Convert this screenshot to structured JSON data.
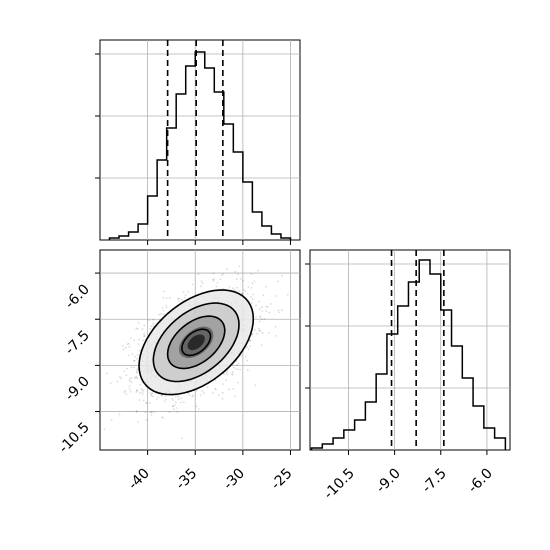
{
  "chart_data": [
    {
      "type": "histogram",
      "variable": "param_1",
      "xlim": [
        -45,
        -24
      ],
      "ylim": [
        0,
        1
      ],
      "bins": [
        {
          "x0": -44,
          "x1": -43,
          "v": 0.01
        },
        {
          "x0": -43,
          "x1": -42,
          "v": 0.02
        },
        {
          "x0": -42,
          "x1": -41,
          "v": 0.04
        },
        {
          "x0": -41,
          "x1": -40,
          "v": 0.08
        },
        {
          "x0": -40,
          "x1": -39,
          "v": 0.22
        },
        {
          "x0": -39,
          "x1": -38,
          "v": 0.4
        },
        {
          "x0": -38,
          "x1": -37,
          "v": 0.56
        },
        {
          "x0": -37,
          "x1": -36,
          "v": 0.73
        },
        {
          "x0": -36,
          "x1": -35,
          "v": 0.87
        },
        {
          "x0": -35,
          "x1": -34,
          "v": 0.94
        },
        {
          "x0": -34,
          "x1": -33,
          "v": 0.86
        },
        {
          "x0": -33,
          "x1": -32,
          "v": 0.74
        },
        {
          "x0": -32,
          "x1": -31,
          "v": 0.58
        },
        {
          "x0": -31,
          "x1": -30,
          "v": 0.44
        },
        {
          "x0": -30,
          "x1": -29,
          "v": 0.29
        },
        {
          "x0": -29,
          "x1": -28,
          "v": 0.14
        },
        {
          "x0": -28,
          "x1": -27,
          "v": 0.07
        },
        {
          "x0": -27,
          "x1": -26,
          "v": 0.03
        },
        {
          "x0": -26,
          "x1": -25,
          "v": 0.01
        }
      ],
      "quantiles": [
        -37.9,
        -34.9,
        -32.1
      ],
      "grid": true
    },
    {
      "type": "scatter-contour",
      "xlim": [
        -45,
        -24
      ],
      "ylim": [
        -11.75,
        -5.25
      ],
      "x_ticks": [
        "-40",
        "-35",
        "-30",
        "-25"
      ],
      "y_ticks": [
        "-6.0",
        "-7.5",
        "-9.0",
        "-10.5"
      ],
      "x_tick_values": [
        -40,
        -35,
        -30,
        -25
      ],
      "y_tick_values": [
        -6.0,
        -7.5,
        -9.0,
        -10.5
      ],
      "mean": [
        -34.9,
        -8.25
      ],
      "std": [
        3.0,
        0.85
      ],
      "correlation": 0.45,
      "contour_levels_sigma": [
        0.5,
        1.0,
        1.5,
        2.0
      ],
      "grid": true
    },
    {
      "type": "histogram",
      "variable": "param_2",
      "xlim": [
        -11.75,
        -5.25
      ],
      "ylim": [
        0,
        1
      ],
      "x_ticks": [
        "-10.5",
        "-9.0",
        "-7.5",
        "-6.0"
      ],
      "x_tick_values": [
        -10.5,
        -9.0,
        -7.5,
        -6.0
      ],
      "bins": [
        {
          "x0": -11.7,
          "x1": -11.35,
          "v": 0.01
        },
        {
          "x0": -11.35,
          "x1": -11.0,
          "v": 0.03
        },
        {
          "x0": -11.0,
          "x1": -10.65,
          "v": 0.06
        },
        {
          "x0": -10.65,
          "x1": -10.3,
          "v": 0.1
        },
        {
          "x0": -10.3,
          "x1": -9.95,
          "v": 0.15
        },
        {
          "x0": -9.95,
          "x1": -9.6,
          "v": 0.24
        },
        {
          "x0": -9.6,
          "x1": -9.25,
          "v": 0.38
        },
        {
          "x0": -9.25,
          "x1": -8.9,
          "v": 0.58
        },
        {
          "x0": -8.9,
          "x1": -8.55,
          "v": 0.72
        },
        {
          "x0": -8.55,
          "x1": -8.2,
          "v": 0.84
        },
        {
          "x0": -8.2,
          "x1": -7.85,
          "v": 0.95
        },
        {
          "x0": -7.85,
          "x1": -7.5,
          "v": 0.88
        },
        {
          "x0": -7.5,
          "x1": -7.15,
          "v": 0.7
        },
        {
          "x0": -7.15,
          "x1": -6.8,
          "v": 0.52
        },
        {
          "x0": -6.8,
          "x1": -6.45,
          "v": 0.36
        },
        {
          "x0": -6.45,
          "x1": -6.1,
          "v": 0.22
        },
        {
          "x0": -6.1,
          "x1": -5.75,
          "v": 0.11
        },
        {
          "x0": -5.75,
          "x1": -5.4,
          "v": 0.06
        }
      ],
      "quantiles": [
        -9.1,
        -8.3,
        -7.4
      ],
      "grid": true
    }
  ]
}
